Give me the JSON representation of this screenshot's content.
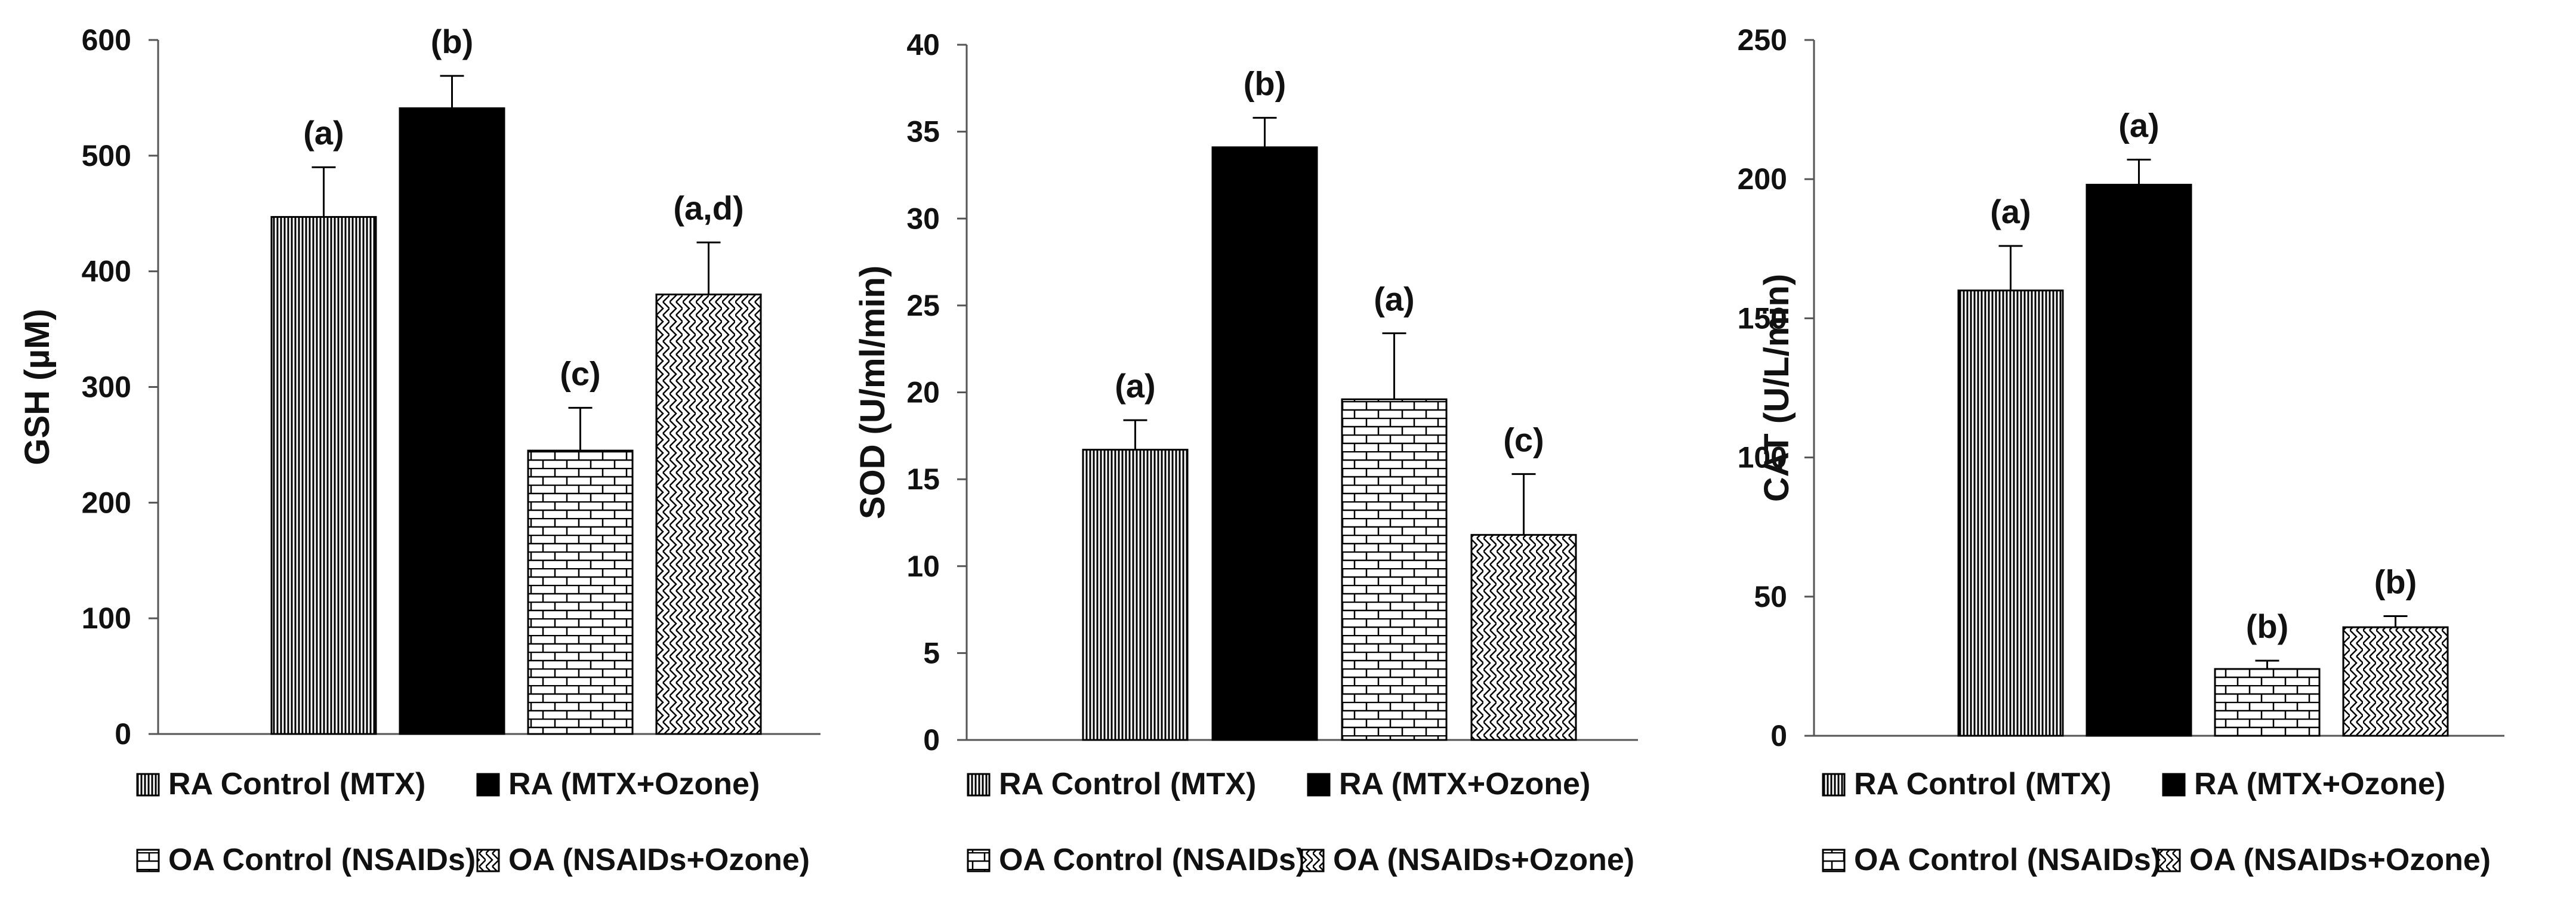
{
  "chart_data": [
    {
      "type": "bar",
      "ylabel": "GSH (µM)",
      "ylim": [
        0,
        600
      ],
      "yticks": [
        0,
        100,
        200,
        300,
        400,
        500,
        600
      ],
      "categories": [
        "RA Control (MTX)",
        "RA (MTX+Ozone)",
        "OA Control (NSAIDs)",
        "OA (NSAIDs+Ozone)"
      ],
      "values": [
        447,
        541,
        245,
        380
      ],
      "errors": [
        43,
        28,
        37,
        45
      ],
      "labels": [
        "(a)",
        "(b)",
        "(c)",
        "(a,d)"
      ],
      "grid": false
    },
    {
      "type": "bar",
      "ylabel": "SOD (U/ml/min)",
      "ylim": [
        0,
        40
      ],
      "yticks": [
        0,
        5,
        10,
        15,
        20,
        25,
        30,
        35,
        40
      ],
      "categories": [
        "RA Control (MTX)",
        "RA (MTX+Ozone)",
        "OA Control (NSAIDs)",
        "OA (NSAIDs+Ozone)"
      ],
      "values": [
        16.7,
        34.1,
        19.6,
        11.8
      ],
      "errors": [
        1.7,
        1.7,
        3.8,
        3.5
      ],
      "labels": [
        "(a)",
        "(b)",
        "(a)",
        "(c)"
      ],
      "grid": false
    },
    {
      "type": "bar",
      "ylabel": "CAT (U/L/min)",
      "ylim": [
        0,
        250
      ],
      "yticks": [
        0,
        50,
        100,
        150,
        200,
        250
      ],
      "categories": [
        "RA Control (MTX)",
        "RA (MTX+Ozone)",
        "OA Control (NSAIDs)",
        "OA (NSAIDs+Ozone)"
      ],
      "values": [
        160,
        198,
        24,
        39
      ],
      "errors": [
        16,
        9,
        3,
        4
      ],
      "labels": [
        "(a)",
        "(a)",
        "(b)",
        "(b)"
      ],
      "grid": false
    }
  ],
  "legend": {
    "placement": "bottom",
    "items": [
      "RA Control (MTX)",
      "RA (MTX+Ozone)",
      "OA Control (NSAIDs)",
      "OA (NSAIDs+Ozone)"
    ]
  },
  "series_patterns": [
    "vertical-lines",
    "solid-black",
    "brick",
    "zigzag"
  ]
}
